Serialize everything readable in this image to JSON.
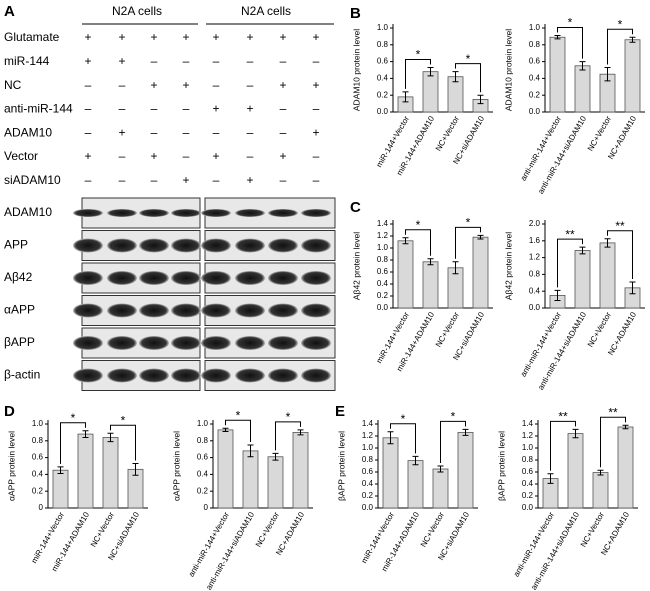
{
  "panel_labels": [
    "A",
    "B",
    "C",
    "D",
    "E"
  ],
  "panel_a": {
    "headers": [
      "N2A cells",
      "N2A cells"
    ],
    "rows": [
      {
        "label": "Glutamate",
        "cells": [
          "+",
          "+",
          "+",
          "+",
          "+",
          "+",
          "+",
          "+"
        ]
      },
      {
        "label": "miR-144",
        "cells": [
          "+",
          "+",
          "–",
          "–",
          "–",
          "–",
          "–",
          "–"
        ]
      },
      {
        "label": "NC",
        "cells": [
          "–",
          "–",
          "+",
          "+",
          "–",
          "–",
          "+",
          "+"
        ]
      },
      {
        "label": "anti-miR-144",
        "cells": [
          "–",
          "–",
          "–",
          "–",
          "+",
          "+",
          "–",
          "–"
        ]
      },
      {
        "label": "ADAM10",
        "cells": [
          "–",
          "+",
          "–",
          "–",
          "–",
          "–",
          "–",
          "+"
        ]
      },
      {
        "label": "Vector",
        "cells": [
          "+",
          "–",
          "+",
          "–",
          "+",
          "–",
          "+",
          "–"
        ]
      },
      {
        "label": "siADAM10",
        "cells": [
          "–",
          "–",
          "–",
          "+",
          "–",
          "+",
          "–",
          "–"
        ]
      }
    ],
    "blots": [
      "ADAM10",
      "APP",
      "Aβ42",
      "αAPP",
      "βAPP",
      "β-actin"
    ]
  },
  "chart_data": [
    {
      "type": "bar",
      "ylabel": "ADAM10 protein level",
      "color": "#d9d9d9",
      "categories": [
        "miR-144+Vector",
        "miR-144+ADAM10",
        "NC+Vector",
        "NC+siADAM10"
      ],
      "values": [
        0.18,
        0.48,
        0.42,
        0.15
      ],
      "errors": [
        0.06,
        0.05,
        0.06,
        0.05
      ],
      "ylim": [
        0,
        1
      ],
      "yticks": [
        {
          "value": 0,
          "label": "0.0"
        },
        0.2,
        0.4,
        0.6,
        0.8,
        {
          "value": 1,
          "label": "1.0"
        }
      ],
      "significance": [
        "*",
        "*"
      ]
    },
    {
      "type": "bar",
      "ylabel": "ADAM10 protein level",
      "color": "#d9d9d9",
      "categories": [
        "anti-miR-144+Vector",
        "anti-miR-144+siADAM10",
        "NC+Vector",
        "NC+ADAM10"
      ],
      "values": [
        0.89,
        0.55,
        0.45,
        0.86
      ],
      "errors": [
        0.02,
        0.05,
        0.08,
        0.03
      ],
      "ylim": [
        0,
        1
      ],
      "yticks": [
        {
          "value": 0,
          "label": "0.0"
        },
        0.2,
        0.4,
        0.6,
        0.8,
        {
          "value": 1,
          "label": "1.0"
        }
      ],
      "significance": [
        "*",
        "*"
      ]
    },
    {
      "type": "bar",
      "ylabel": "Aβ42 protein level",
      "color": "#d9d9d9",
      "categories": [
        "miR-144+Vector",
        "miR-144+ADAM10",
        "NC+Vector",
        "NC+siADAM10"
      ],
      "values": [
        1.12,
        0.77,
        0.67,
        1.18
      ],
      "errors": [
        0.05,
        0.05,
        0.1,
        0.03
      ],
      "ylim": [
        0,
        1.4
      ],
      "yticks": [
        {
          "value": 0,
          "label": "0.0"
        },
        0.2,
        0.4,
        0.6,
        0.8,
        {
          "value": 1,
          "label": "1.0"
        },
        1.2,
        1.4
      ],
      "significance": [
        "*",
        "*"
      ]
    },
    {
      "type": "bar",
      "ylabel": "Aβ42 protein level",
      "color": "#d9d9d9",
      "categories": [
        "anti-miR-144+Vector",
        "anti-miR-144+siADAM10",
        "NC+Vector",
        "NC+ADAM10"
      ],
      "values": [
        0.3,
        1.37,
        1.55,
        0.48
      ],
      "errors": [
        0.12,
        0.08,
        0.1,
        0.14
      ],
      "ylim": [
        0,
        2
      ],
      "yticks": [
        {
          "value": 0,
          "label": "0.0"
        },
        0.4,
        0.8,
        1.2,
        1.6,
        {
          "value": 2,
          "label": "2.0"
        }
      ],
      "significance": [
        "**",
        "**"
      ]
    },
    {
      "type": "bar",
      "ylabel": "αAPP protein level",
      "color": "#d9d9d9",
      "categories": [
        "miR-144+Vector",
        "miR-144+ADAM10",
        "NC+Vector",
        "NC+siADAM10"
      ],
      "values": [
        0.45,
        0.88,
        0.84,
        0.46
      ],
      "errors": [
        0.04,
        0.04,
        0.05,
        0.07
      ],
      "ylim": [
        0,
        1
      ],
      "yticks": [
        0,
        0.2,
        0.4,
        0.6,
        0.8,
        {
          "value": 1,
          "label": "1.0"
        }
      ],
      "significance": [
        "*",
        "*"
      ]
    },
    {
      "type": "bar",
      "ylabel": "αAPP protein level",
      "color": "#d9d9d9",
      "categories": [
        "anti-miR-144+Vector",
        "anti-miR-144+siADAM10",
        "NC+Vector",
        "NC+ADAM10"
      ],
      "values": [
        0.93,
        0.68,
        0.61,
        0.9
      ],
      "errors": [
        0.02,
        0.07,
        0.04,
        0.03
      ],
      "ylim": [
        0,
        1
      ],
      "yticks": [
        0,
        0.2,
        0.4,
        0.6,
        0.8,
        {
          "value": 1,
          "label": "1.0"
        }
      ],
      "significance": [
        "*",
        "*"
      ]
    },
    {
      "type": "bar",
      "ylabel": "βAPP protein level",
      "color": "#d9d9d9",
      "categories": [
        "miR-144+Vector",
        "miR-144+ADAM10",
        "NC+Vector",
        "NC+siADAM10"
      ],
      "values": [
        1.17,
        0.79,
        0.65,
        1.26
      ],
      "errors": [
        0.1,
        0.07,
        0.05,
        0.05
      ],
      "ylim": [
        0,
        1.4
      ],
      "yticks": [
        {
          "value": 0,
          "label": "0.0"
        },
        0.2,
        0.4,
        0.6,
        0.8,
        {
          "value": 1,
          "label": "1.0"
        },
        1.2,
        1.4
      ],
      "significance": [
        "*",
        "*"
      ]
    },
    {
      "type": "bar",
      "ylabel": "βAPP protein level",
      "color": "#d9d9d9",
      "categories": [
        "anti-miR-144+Vector",
        "anti-miR-144+siADAM10",
        "NC+Vector",
        "NC+ADAM10"
      ],
      "values": [
        0.49,
        1.24,
        0.59,
        1.35
      ],
      "errors": [
        0.08,
        0.07,
        0.04,
        0.03
      ],
      "ylim": [
        0,
        1.4
      ],
      "yticks": [
        {
          "value": 0,
          "label": "0.0"
        },
        0.2,
        0.4,
        0.6,
        0.8,
        {
          "value": 1,
          "label": "1.0"
        },
        1.2,
        1.4
      ],
      "significance": [
        "**",
        "**"
      ]
    }
  ]
}
